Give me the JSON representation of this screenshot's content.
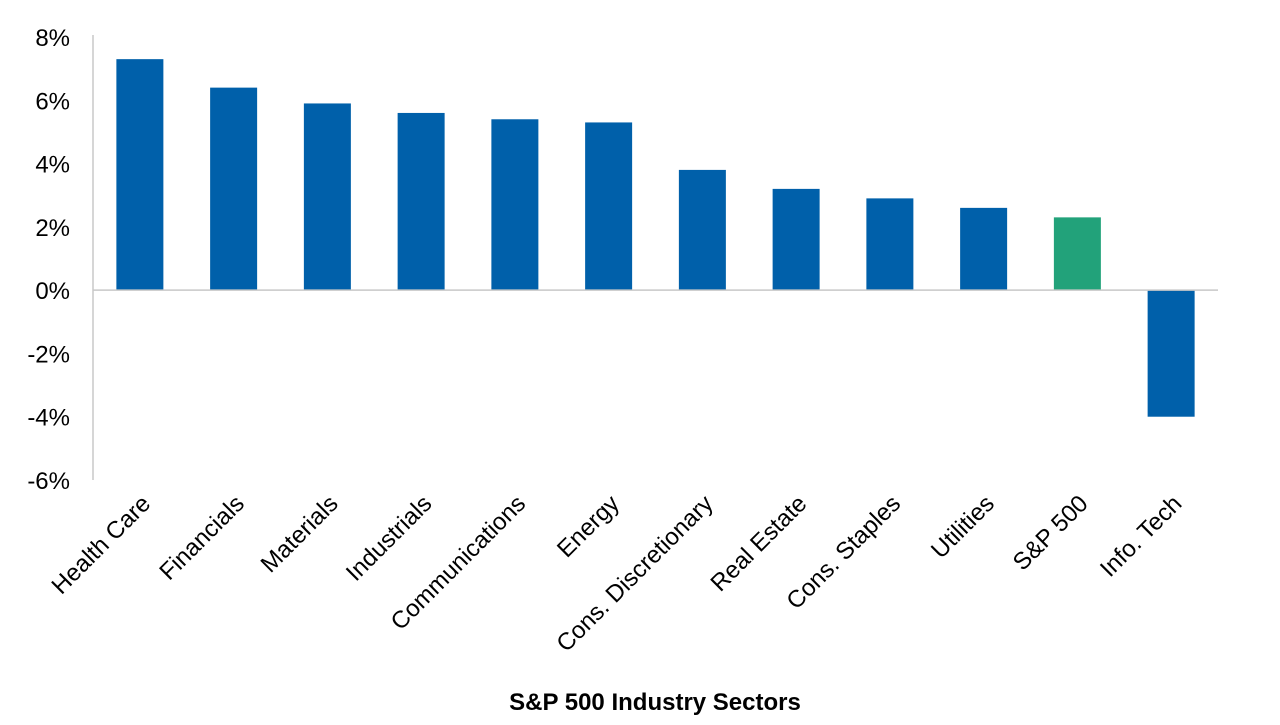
{
  "chart_data": {
    "type": "bar",
    "title": "",
    "xlabel": "S&P 500 Industry Sectors",
    "ylabel": "",
    "categories": [
      "Health Care",
      "Financials",
      "Materials",
      "Industrials",
      "Communications",
      "Energy",
      "Cons. Discretionary",
      "Real Estate",
      "Cons. Staples",
      "Utilities",
      "S&P 500",
      "Info. Tech"
    ],
    "values": [
      7.3,
      6.4,
      5.9,
      5.6,
      5.4,
      5.3,
      3.8,
      3.2,
      2.9,
      2.6,
      2.3,
      -4.0
    ],
    "highlight_category": "S&P 500",
    "ylim": [
      -6,
      8
    ],
    "yticks": [
      8,
      6,
      4,
      2,
      0,
      -2,
      -4,
      -6
    ],
    "ytick_labels": [
      "8%",
      "6%",
      "4%",
      "2%",
      "0%",
      "-2%",
      "-4%",
      "-6%"
    ],
    "grid": false,
    "legend": "none",
    "colors": {
      "bar": "#0060AA",
      "highlight": "#22A27A",
      "axis": "#C8C8C8",
      "text": "#000000"
    }
  }
}
